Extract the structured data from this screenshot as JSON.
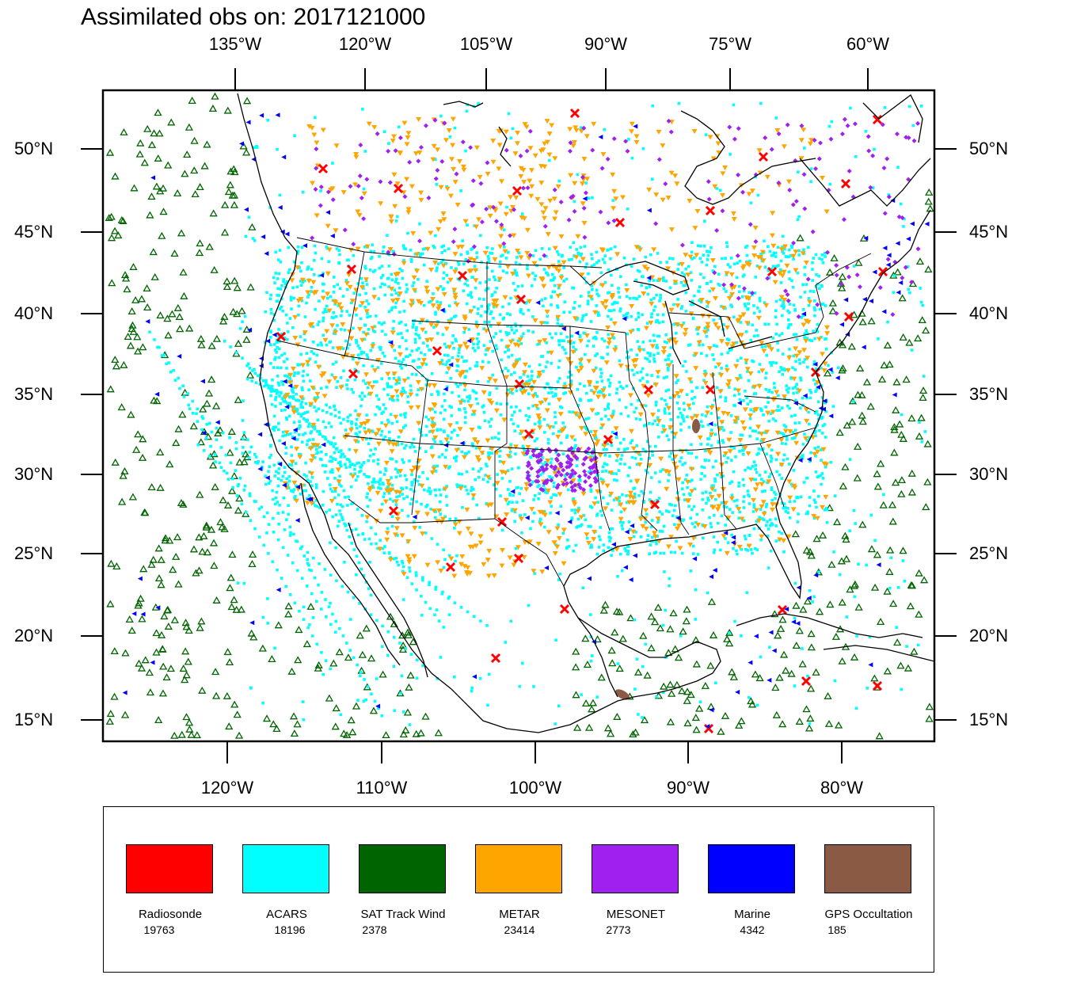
{
  "title": "Assimilated obs on: 2017121000",
  "top_lon_labels": [
    "135°W",
    "120°W",
    "105°W",
    "90°W",
    "75°W",
    "60°W"
  ],
  "bottom_lon_labels": [
    "120°W",
    "110°W",
    "100°W",
    "90°W",
    "80°W"
  ],
  "lat_labels": [
    "50°N",
    "45°N",
    "40°N",
    "35°N",
    "30°N",
    "25°N",
    "20°N",
    "15°N"
  ],
  "legend": [
    {
      "name": "Radiosonde",
      "count": "19763",
      "color": "#ff0000"
    },
    {
      "name": "ACARS",
      "count": "18196",
      "color": "#00ffff"
    },
    {
      "name": "SAT Track Wind",
      "count": "2378",
      "color": "#006400"
    },
    {
      "name": "METAR",
      "count": "23414",
      "color": "#ffa500"
    },
    {
      "name": "MESONET",
      "count": "2773",
      "color": "#a020f0"
    },
    {
      "name": "Marine",
      "count": "4342",
      "color": "#0000ff"
    },
    {
      "name": "GPS Occultation",
      "count": "185",
      "color": "#8b5a44"
    }
  ],
  "map": {
    "lon_range": [
      "127°W",
      "73°W"
    ],
    "lat_range": [
      "13.7°N",
      "53.7°N"
    ]
  }
}
